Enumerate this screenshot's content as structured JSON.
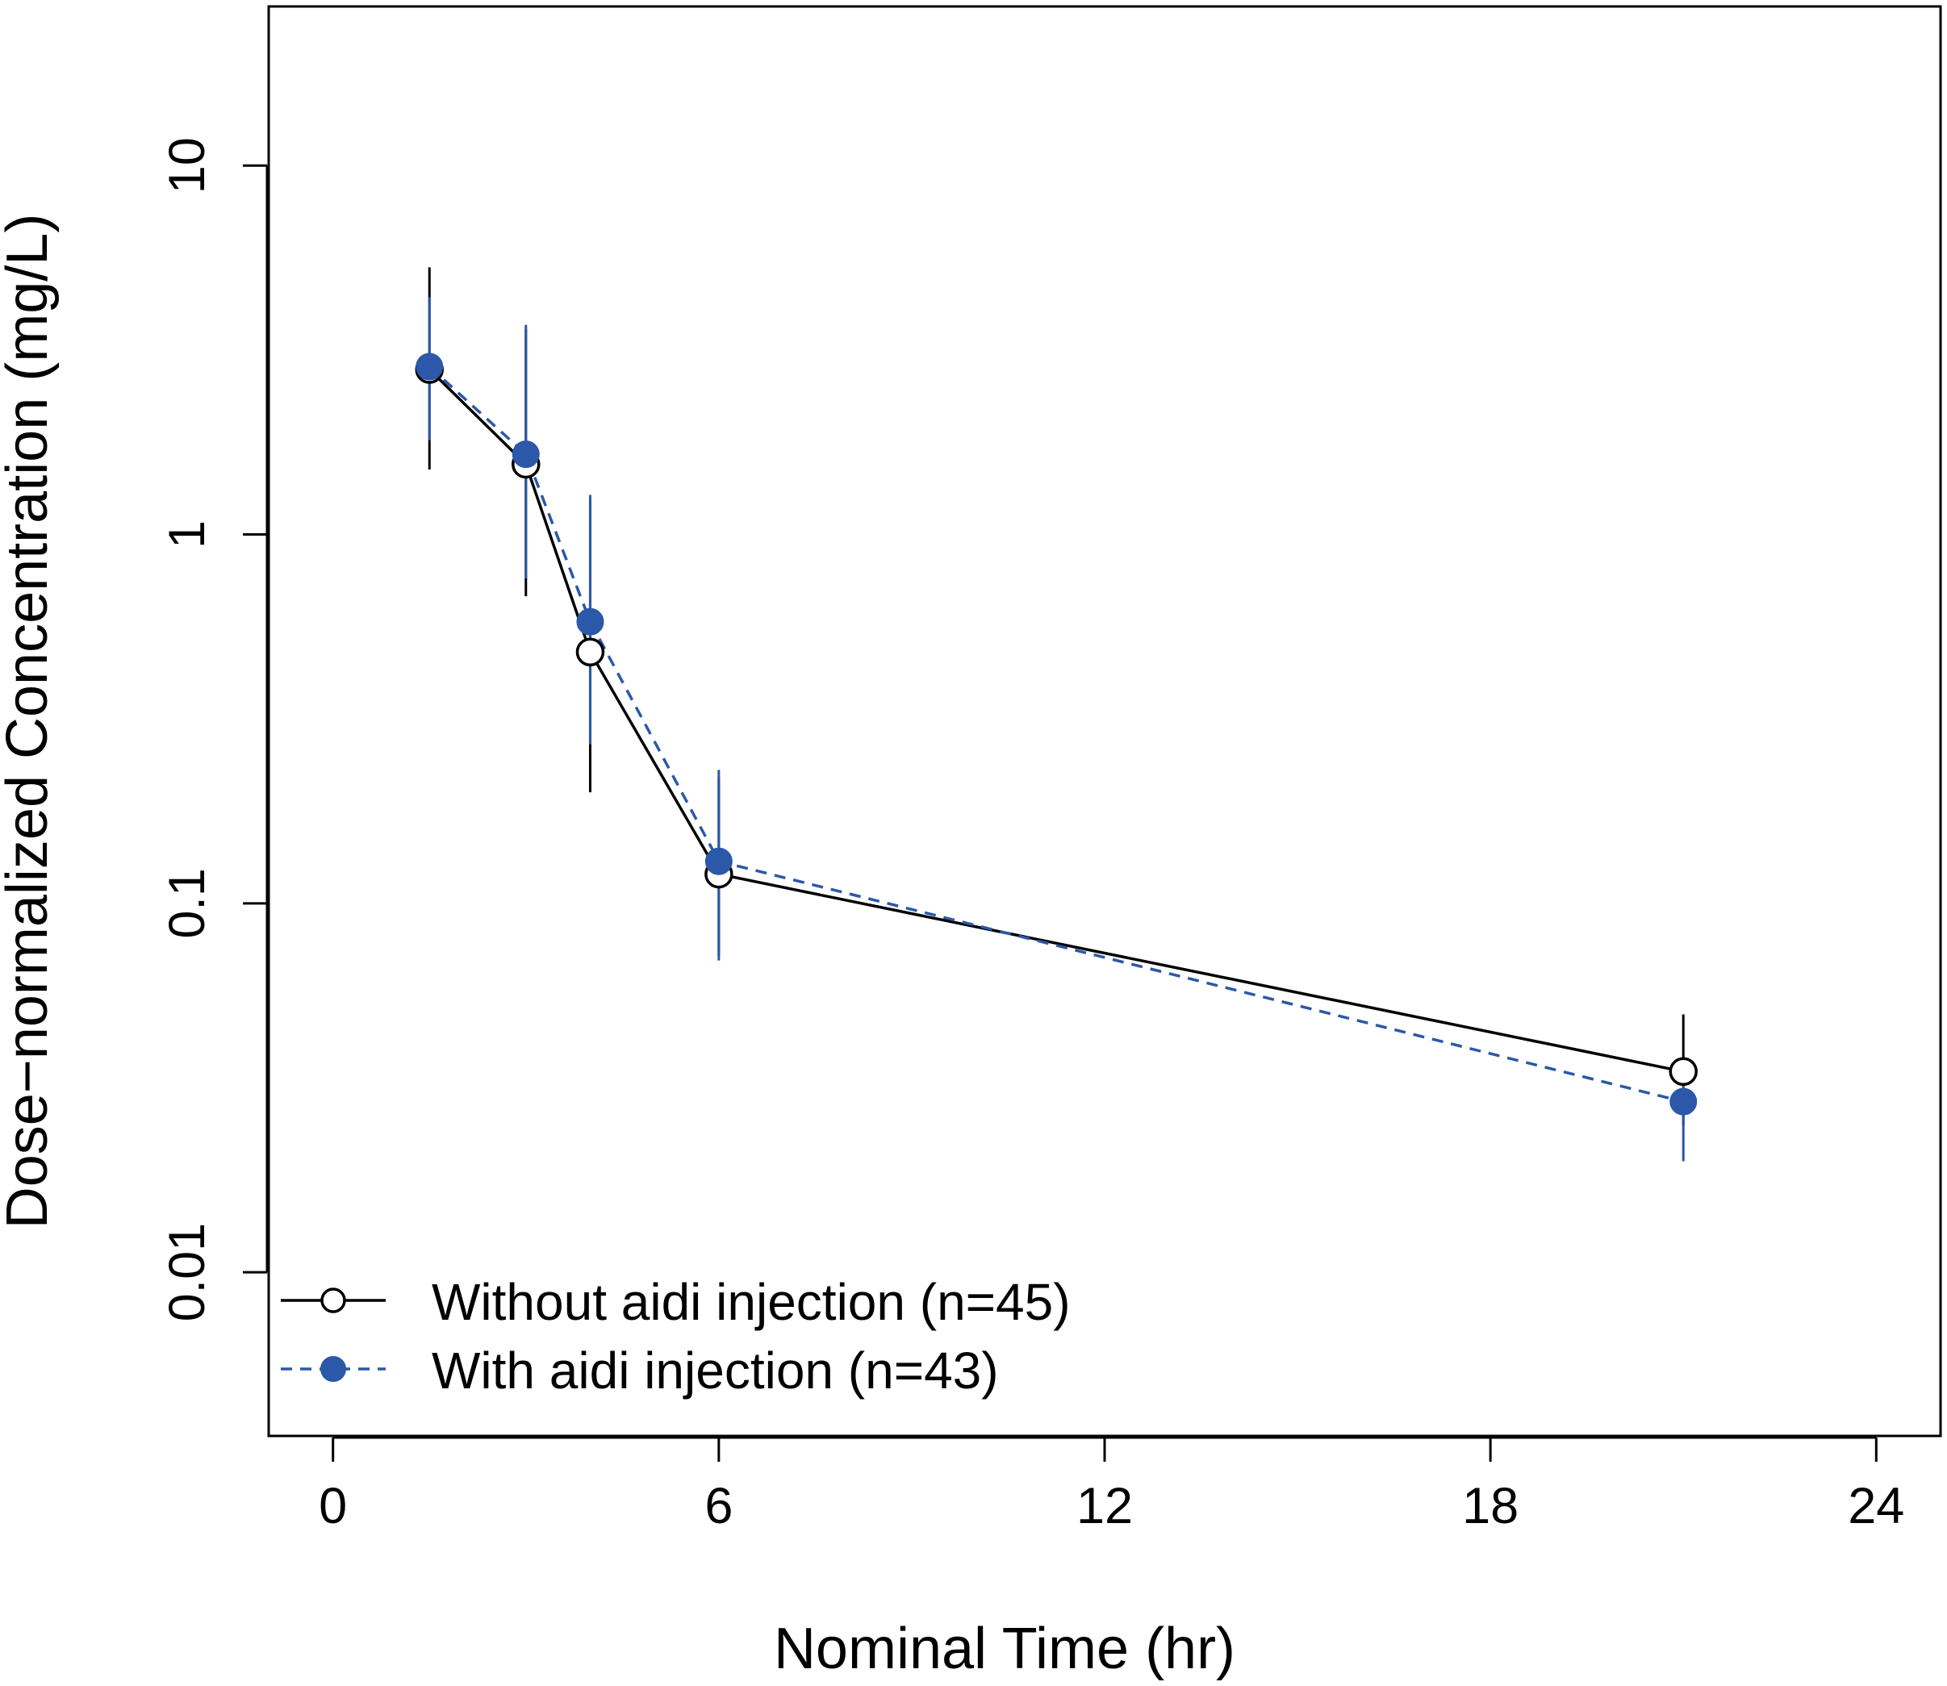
{
  "chart_data": {
    "type": "line",
    "title": "",
    "xlabel": "Nominal Time (hr)",
    "ylabel": "Dose−normalized Concentration (mg/L)",
    "x_scale": "linear",
    "y_scale": "log",
    "xlim": [
      -1,
      25
    ],
    "ylim": [
      0.0036,
      27
    ],
    "x_ticks": [
      0,
      6,
      12,
      18,
      24
    ],
    "x_tick_labels": [
      "0",
      "6",
      "12",
      "18",
      "24"
    ],
    "y_ticks": [
      0.01,
      0.1,
      1,
      10
    ],
    "y_tick_labels": [
      "0.01",
      "0.1",
      "1",
      "10"
    ],
    "grid": false,
    "legend_position": "bottom-left",
    "series": [
      {
        "name": "Without aidi injection (n=45)",
        "color": "#000000",
        "line_style": "solid",
        "marker": "open-circle",
        "x": [
          1.5,
          3.0,
          4.0,
          6.0,
          21.0
        ],
        "y": [
          2.8,
          1.55,
          0.48,
          0.12,
          0.035
        ],
        "err_low": [
          1.5,
          0.68,
          0.2,
          0.072,
          0.025
        ],
        "err_high": [
          5.3,
          3.6,
          1.25,
          0.22,
          0.05
        ]
      },
      {
        "name": "With aidi injection (n=43)",
        "color": "#2B58A8",
        "line_style": "dashed",
        "marker": "filled-circle",
        "x": [
          1.5,
          3.0,
          4.0,
          6.0,
          21.0
        ],
        "y": [
          2.85,
          1.65,
          0.58,
          0.13,
          0.029
        ],
        "err_low": [
          1.8,
          0.76,
          0.27,
          0.07,
          0.02
        ],
        "err_high": [
          4.4,
          3.7,
          1.28,
          0.23,
          0.035
        ]
      }
    ]
  }
}
